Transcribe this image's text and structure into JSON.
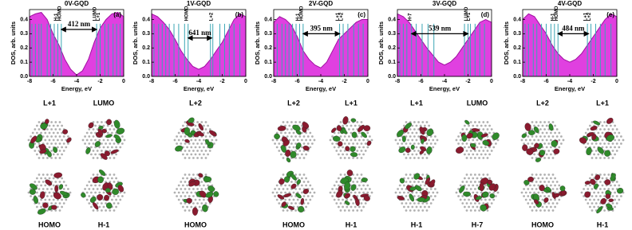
{
  "chart_data": [
    {
      "type": "area",
      "title": "0V-GQD",
      "panel_label": "(a)",
      "x_label": "Energy, eV",
      "y_label": "DOS, arb. units",
      "x": [
        -8,
        -7.5,
        -7,
        -6.5,
        -6,
        -5.5,
        -5,
        -4.5,
        -4,
        -3.5,
        -3,
        -2.5,
        -2,
        -1.5,
        -1,
        -0.5,
        0
      ],
      "values": [
        0.42,
        0.44,
        0.45,
        0.4,
        0.3,
        0.22,
        0.12,
        0.05,
        0.01,
        0.04,
        0.12,
        0.24,
        0.34,
        0.4,
        0.44,
        0.45,
        0.42
      ],
      "color": "#e040e0",
      "level_color": "#3aa6b4",
      "levels": [
        -7.8,
        -7.5,
        -7.2,
        -7.0,
        -6.5,
        -6.2,
        -5.9,
        -5.6,
        -5.3,
        -2.3,
        -2.0,
        -1.6,
        -1.3,
        -0.9,
        -0.6,
        -0.3
      ],
      "level_labels": [
        {
          "label": "H-1",
          "energy": -5.6
        },
        {
          "label": "HOMO",
          "energy": -5.3
        },
        {
          "label": "LUMO",
          "energy": -2.3
        },
        {
          "label": "L+1",
          "energy": -2.0
        }
      ],
      "arrow": {
        "from": -5.3,
        "to": -2.3,
        "y": 0.33,
        "label": "412 nm"
      },
      "xlim": [
        -8,
        0
      ],
      "ylim": [
        0,
        0.47
      ],
      "xticks": [
        -8,
        -6,
        -4,
        -2,
        0
      ],
      "yticks": [
        {
          "value": 0,
          "label": "0.0"
        },
        {
          "value": 0.1,
          "label": "0.1"
        },
        {
          "value": 0.2,
          "label": "0.2"
        },
        {
          "value": 0.3,
          "label": "0.3"
        },
        {
          "value": 0.4,
          "label": "0.4"
        }
      ]
    },
    {
      "type": "area",
      "title": "1V-GQD",
      "panel_label": "(b)",
      "x_label": "Energy, eV",
      "y_label": "DOS, arb. units",
      "x": [
        -8,
        -7.5,
        -7,
        -6.5,
        -6,
        -5.5,
        -5,
        -4.5,
        -4,
        -3.5,
        -3,
        -2.5,
        -2,
        -1.5,
        -1,
        -0.5,
        0
      ],
      "values": [
        0.44,
        0.42,
        0.38,
        0.33,
        0.26,
        0.18,
        0.12,
        0.07,
        0.05,
        0.07,
        0.12,
        0.18,
        0.24,
        0.32,
        0.4,
        0.44,
        0.42
      ],
      "color": "#e040e0",
      "level_color": "#3aa6b4",
      "levels": [
        -7.8,
        -7.4,
        -7.1,
        -6.8,
        -6.5,
        -6.1,
        -5.7,
        -5.2,
        -4.9,
        -3.0,
        -2.8,
        -2.2,
        -1.8,
        -1.4,
        -1.0,
        -0.5
      ],
      "level_labels": [
        {
          "label": "HOMO",
          "energy": -4.9
        },
        {
          "label": "L+2",
          "energy": -2.8
        }
      ],
      "arrow": {
        "from": -4.9,
        "to": -2.9,
        "y": 0.27,
        "label": "641 nm"
      },
      "xlim": [
        -8,
        0
      ],
      "ylim": [
        0,
        0.47
      ],
      "xticks": [
        -8,
        -6,
        -4,
        -2,
        0
      ],
      "yticks": [
        {
          "value": 0,
          "label": "0.0"
        },
        {
          "value": 0.1,
          "label": "0.1"
        },
        {
          "value": 0.2,
          "label": "0.2"
        },
        {
          "value": 0.3,
          "label": "0.3"
        },
        {
          "value": 0.4,
          "label": "0.4"
        }
      ]
    },
    {
      "type": "area",
      "title": "2V-GQD",
      "panel_label": "(c)",
      "x_label": "Energy, eV",
      "y_label": "DOS, arb. units",
      "x": [
        -8,
        -7.5,
        -7,
        -6.5,
        -6,
        -5.5,
        -5,
        -4.5,
        -4,
        -3.5,
        -3,
        -2.5,
        -2,
        -1.5,
        -1,
        -0.5,
        0
      ],
      "values": [
        0.38,
        0.42,
        0.4,
        0.36,
        0.28,
        0.18,
        0.12,
        0.08,
        0.06,
        0.1,
        0.18,
        0.26,
        0.3,
        0.34,
        0.38,
        0.4,
        0.4
      ],
      "color": "#e040e0",
      "level_color": "#3aa6b4",
      "levels": [
        -7.7,
        -7.3,
        -7.0,
        -6.7,
        -6.4,
        -6.1,
        -5.8,
        -5.5,
        -2.4,
        -2.1,
        -1.7,
        -1.2,
        -0.8,
        -0.4
      ],
      "level_labels": [
        {
          "label": "H-1",
          "energy": -5.8
        },
        {
          "label": "HOMO",
          "energy": -5.5
        },
        {
          "label": "L+1",
          "energy": -2.4
        },
        {
          "label": "L+2",
          "energy": -2.1
        }
      ],
      "arrow": {
        "from": -5.5,
        "to": -2.4,
        "y": 0.3,
        "label": "395 nm"
      },
      "xlim": [
        -8,
        0
      ],
      "ylim": [
        0,
        0.47
      ],
      "xticks": [
        -8,
        -6,
        -4,
        -2,
        0
      ],
      "yticks": [
        {
          "value": 0,
          "label": "0.0"
        },
        {
          "value": 0.1,
          "label": "0.1"
        },
        {
          "value": 0.2,
          "label": "0.2"
        },
        {
          "value": 0.3,
          "label": "0.3"
        },
        {
          "value": 0.4,
          "label": "0.4"
        }
      ]
    },
    {
      "type": "area",
      "title": "3V-GQD",
      "panel_label": "(d)",
      "x_label": "Energy, eV",
      "y_label": "DOS, arb. units",
      "x": [
        -8,
        -7.5,
        -7,
        -6.5,
        -6,
        -5.5,
        -5,
        -4.5,
        -4,
        -3.5,
        -3,
        -2.5,
        -2,
        -1.5,
        -1,
        -0.5,
        0
      ],
      "values": [
        0.44,
        0.42,
        0.38,
        0.32,
        0.26,
        0.2,
        0.15,
        0.1,
        0.08,
        0.1,
        0.14,
        0.2,
        0.26,
        0.32,
        0.38,
        0.4,
        0.38
      ],
      "color": "#e040e0",
      "level_color": "#3aa6b4",
      "levels": [
        -7.8,
        -7.5,
        -7.2,
        -6.8,
        -6.4,
        -5.9,
        -5.4,
        -4.9,
        -2.3,
        -2.0,
        -1.8,
        -1.4,
        -1.0,
        -0.6
      ],
      "level_labels": [
        {
          "label": "H-7",
          "energy": -6.8
        },
        {
          "label": "LUMO",
          "energy": -2.0
        },
        {
          "label": "L+1",
          "energy": -1.8
        }
      ],
      "arrow": {
        "from": -6.8,
        "to": -2.0,
        "y": 0.3,
        "label": "539 nm"
      },
      "xlim": [
        -8,
        0
      ],
      "ylim": [
        0,
        0.47
      ],
      "xticks": [
        -8,
        -6,
        -4,
        -2,
        0
      ],
      "yticks": [
        {
          "value": 0,
          "label": "0.0"
        },
        {
          "value": 0.1,
          "label": "0.1"
        },
        {
          "value": 0.2,
          "label": "0.2"
        },
        {
          "value": 0.3,
          "label": "0.3"
        },
        {
          "value": 0.4,
          "label": "0.4"
        }
      ]
    },
    {
      "type": "area",
      "title": "4V-GQD",
      "panel_label": "(e)",
      "x_label": "Energy, eV",
      "y_label": "DOS, arb. units",
      "x": [
        -8,
        -7.5,
        -7,
        -6.5,
        -6,
        -5.5,
        -5,
        -4.5,
        -4,
        -3.5,
        -3,
        -2.5,
        -2,
        -1.5,
        -1,
        -0.5,
        0
      ],
      "values": [
        0.4,
        0.44,
        0.42,
        0.36,
        0.3,
        0.22,
        0.16,
        0.12,
        0.1,
        0.12,
        0.16,
        0.22,
        0.28,
        0.34,
        0.4,
        0.44,
        0.42
      ],
      "color": "#e040e0",
      "level_color": "#3aa6b4",
      "levels": [
        -7.8,
        -7.5,
        -7.1,
        -6.8,
        -6.4,
        -6.0,
        -5.6,
        -5.3,
        -5.0,
        -2.5,
        -2.2,
        -1.8,
        -1.4,
        -1.0,
        -0.5
      ],
      "level_labels": [
        {
          "label": "H-1",
          "energy": -5.3
        },
        {
          "label": "HOMO",
          "energy": -5.0
        },
        {
          "label": "L+1",
          "energy": -2.5
        },
        {
          "label": "L+2",
          "energy": -2.2
        }
      ],
      "arrow": {
        "from": -5.0,
        "to": -2.4,
        "y": 0.3,
        "label": "484 nm"
      },
      "xlim": [
        -8,
        0
      ],
      "ylim": [
        0,
        0.47
      ],
      "xticks": [
        -8,
        -6,
        -4,
        -2,
        0
      ],
      "yticks": [
        {
          "value": 0,
          "label": "0.0"
        },
        {
          "value": 0.1,
          "label": "0.1"
        },
        {
          "value": 0.2,
          "label": "0.2"
        },
        {
          "value": 0.3,
          "label": "0.3"
        },
        {
          "value": 0.4,
          "label": "0.4"
        }
      ]
    }
  ],
  "orbitals": [
    {
      "labels": [
        "L+1",
        "LUMO",
        "HOMO",
        "H-1"
      ]
    },
    {
      "labels": [
        "L+2",
        "HOMO"
      ]
    },
    {
      "labels": [
        "L+2",
        "L+1",
        "HOMO",
        "H-1"
      ]
    },
    {
      "labels": [
        "L+1",
        "LUMO",
        "H-1",
        "H-7"
      ]
    },
    {
      "labels": [
        "L+2",
        "L+1",
        "HOMO",
        "H-1"
      ]
    }
  ]
}
